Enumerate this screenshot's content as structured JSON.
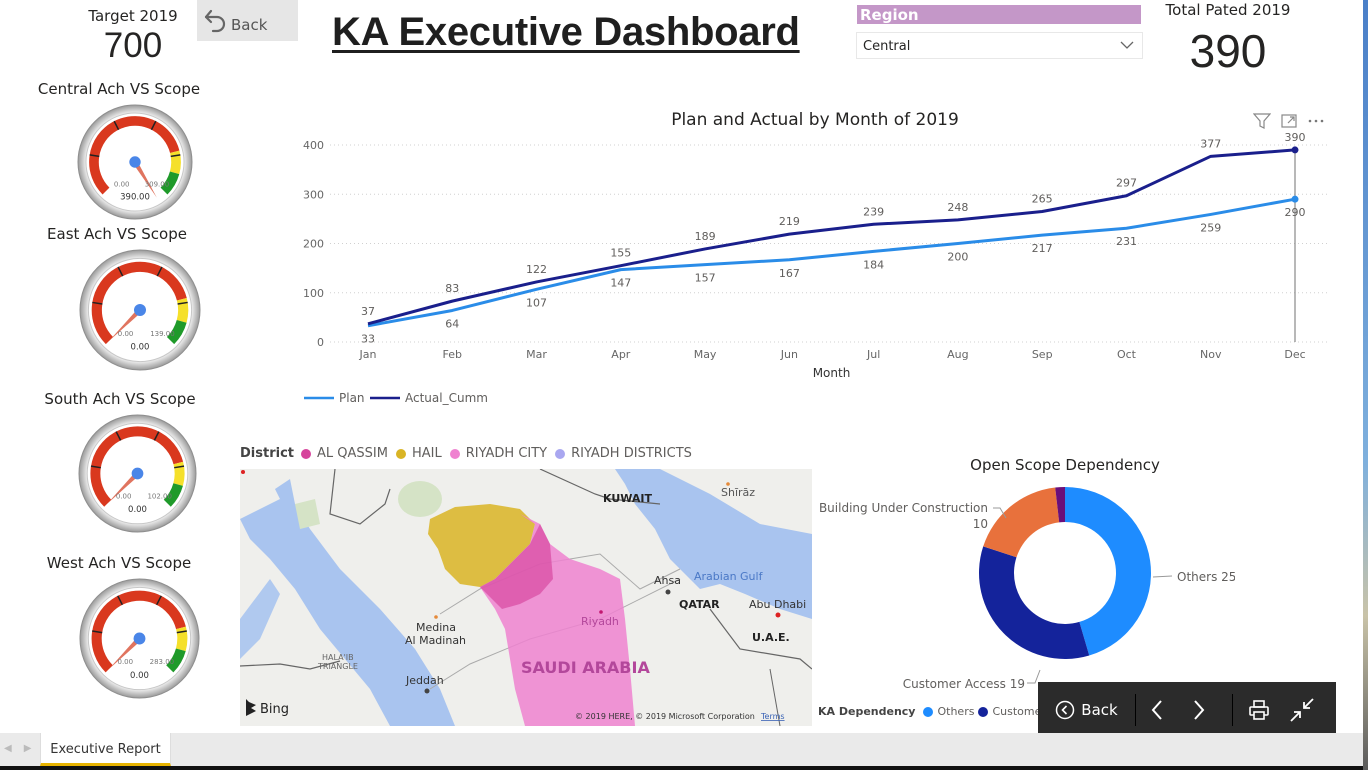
{
  "header": {
    "title": "KA Executive Dashboard",
    "back_label": "Back",
    "target": {
      "label": "Target 2019",
      "value": "700"
    },
    "total": {
      "label": "Total Pated 2019",
      "value": "390"
    }
  },
  "slicer": {
    "label": "Region",
    "selected": "Central"
  },
  "gauges": [
    {
      "title": "Central Ach VS Scope",
      "min_label": "0.00",
      "max_label": "309.00",
      "value_label": "390.00",
      "value": 390,
      "max": 309
    },
    {
      "title": "East Ach VS Scope",
      "min_label": "0.00",
      "max_label": "139.00",
      "value_label": "0.00",
      "value": 0,
      "max": 139
    },
    {
      "title": "South Ach VS Scope",
      "min_label": "0.00",
      "max_label": "102.00",
      "value_label": "0.00",
      "value": 0,
      "max": 102
    },
    {
      "title": "West Ach VS Scope",
      "min_label": "0.00",
      "max_label": "283.00",
      "value_label": "0.00",
      "value": 0,
      "max": 283
    }
  ],
  "colors": {
    "plan": "#2a8ce8",
    "actual": "#1a1f8c",
    "gauge_red": "#d9381e",
    "gauge_yellow": "#f5e02a",
    "gauge_green": "#1f9a2a",
    "slicer_header": "#c497c8",
    "al_qassim": "#d6449c",
    "hail": "#d9b425",
    "riyadh_city": "#ef82d0",
    "riyadh_districts": "#a9a7f0",
    "others": "#1e8cff",
    "customer_access": "#14239b",
    "building": "#e8713c",
    "other_small": "#6a0f7a"
  },
  "chart_data": [
    {
      "type": "line",
      "title": "Plan and Actual by Month of 2019",
      "xlabel": "Month",
      "ylabel": "",
      "categories": [
        "Jan",
        "Feb",
        "Mar",
        "Apr",
        "May",
        "Jun",
        "Jul",
        "Aug",
        "Sep",
        "Oct",
        "Nov",
        "Dec"
      ],
      "yticks": [
        0,
        100,
        200,
        300,
        400
      ],
      "ylim": [
        0,
        400
      ],
      "grid": true,
      "legend_position": "bottom-left",
      "series": [
        {
          "name": "Plan",
          "values": [
            33,
            64,
            107,
            147,
            157,
            167,
            184,
            200,
            217,
            231,
            259,
            290
          ]
        },
        {
          "name": "Actual_Cumm",
          "values": [
            37,
            83,
            122,
            155,
            189,
            219,
            239,
            248,
            265,
            297,
            377,
            390
          ]
        }
      ]
    },
    {
      "type": "pie",
      "title": "Open Scope Dependency",
      "donut": true,
      "legend_title": "KA Dependency",
      "legend_position": "bottom-left",
      "slices": [
        {
          "name": "Others",
          "value": 25,
          "label": "Others 25"
        },
        {
          "name": "Customer Access",
          "value": 19,
          "label": "Customer Access 19"
        },
        {
          "name": "Building Under Construction",
          "value": 10,
          "label": "Building Under Construction",
          "label2": "10"
        },
        {
          "name": "Other",
          "value": 1,
          "label": ""
        }
      ],
      "legend_visible": [
        "Others",
        "Customer Acce"
      ]
    }
  ],
  "map": {
    "legend_title": "District",
    "legend": [
      "AL QASSIM",
      "HAIL",
      "RIYADH CITY",
      "RIYADH DISTRICTS"
    ],
    "places": {
      "kuwait": "KUWAIT",
      "shiraz": "Shīrāz",
      "ahsa": "Ahsa",
      "arabian_gulf": "Arabian Gulf",
      "qatar": "QATAR",
      "abu_dhabi": "Abu Dhabi",
      "uae": "U.A.E.",
      "medina": "Medina",
      "al_madinah": "Al Madinah",
      "riyadh": "Riyadh",
      "saudi": "SAUDI ARABIA",
      "halaib1": "HALA'IB",
      "halaib2": "TRIANGLE",
      "jeddah": "Jeddah"
    },
    "attribution": "© 2019 HERE, © 2019 Microsoft Corporation",
    "terms": "Terms",
    "bing": "Bing"
  },
  "nav": {
    "back_label": "Back"
  },
  "tabs": {
    "active": "Executive Report"
  }
}
